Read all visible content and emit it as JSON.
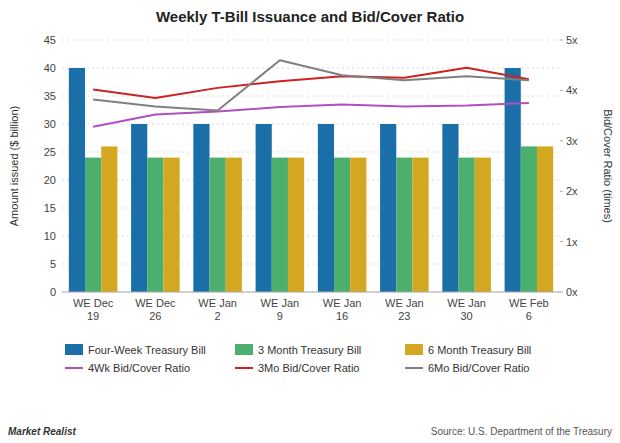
{
  "chart_data": {
    "type": "bar",
    "title": "Weekly T-Bill Issuance and Bid/Cover Ratio",
    "categories": [
      "WE Dec\n19",
      "WE Dec\n26",
      "WE Jan\n2",
      "WE Jan\n9",
      "WE Jan\n16",
      "WE Jan\n23",
      "WE Jan\n30",
      "WE Feb\n6"
    ],
    "series": [
      {
        "name": "Four-Week Treasury Bill",
        "type": "bar",
        "color": "#1a6fa8",
        "values": [
          40,
          30,
          30,
          30,
          30,
          30,
          30,
          40
        ]
      },
      {
        "name": "3 Month Treasury Bill",
        "type": "bar",
        "color": "#4caf6e",
        "values": [
          24,
          24,
          24,
          24,
          24,
          24,
          24,
          26
        ]
      },
      {
        "name": "6 Month Treasury Bill",
        "type": "bar",
        "color": "#d4a720",
        "values": [
          26,
          24,
          24,
          24,
          24,
          24,
          24,
          26
        ]
      },
      {
        "name": "4Wk Bid/Cover Ratio",
        "type": "line",
        "axis": "y2",
        "color": "#b04fc0",
        "values": [
          3.28,
          3.52,
          3.58,
          3.67,
          3.72,
          3.68,
          3.7,
          3.75
        ]
      },
      {
        "name": "3Mo Bid/Cover Ratio",
        "type": "line",
        "axis": "y2",
        "color": "#cc2222",
        "values": [
          4.02,
          3.85,
          4.05,
          4.18,
          4.28,
          4.25,
          4.45,
          4.22
        ]
      },
      {
        "name": "6Mo Bid/Cover Ratio",
        "type": "line",
        "axis": "y2",
        "color": "#808080",
        "values": [
          3.82,
          3.68,
          3.6,
          4.6,
          4.3,
          4.2,
          4.28,
          4.2
        ]
      }
    ],
    "ylabel": "Amount issued ($ billion)",
    "y2label": "Bid/Cover Ratio (times)",
    "ylim": [
      0,
      45
    ],
    "yticks": [
      0,
      5,
      10,
      15,
      20,
      25,
      30,
      35,
      40,
      45
    ],
    "y2lim": [
      0,
      5
    ],
    "y2ticks": [
      {
        "value": 0,
        "label": "0x"
      },
      {
        "value": 1,
        "label": "1x"
      },
      {
        "value": 2,
        "label": "2x"
      },
      {
        "value": 3,
        "label": "3x"
      },
      {
        "value": 4,
        "label": "4x"
      },
      {
        "value": 5,
        "label": "5x"
      }
    ],
    "grid": true,
    "legend": "bottom",
    "annotations": [
      "Market Realist",
      "Source: U.S. Department of the Treasury"
    ]
  }
}
